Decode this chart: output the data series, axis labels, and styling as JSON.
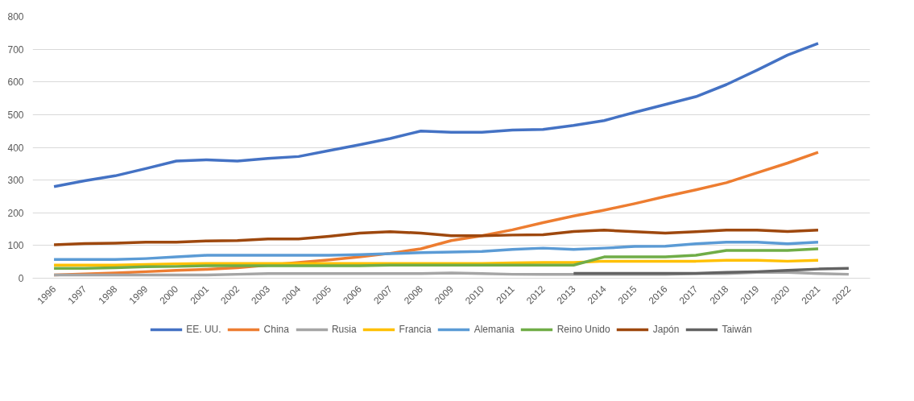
{
  "chart_data": {
    "type": "line",
    "categories": [
      "1996",
      "1997",
      "1998",
      "1999",
      "2000",
      "2001",
      "2002",
      "2003",
      "2004",
      "2005",
      "2006",
      "2007",
      "2008",
      "2009",
      "2010",
      "2011",
      "2012",
      "2013",
      "2014",
      "2015",
      "2016",
      "2017",
      "2018",
      "2019",
      "2020",
      "2021",
      "2022"
    ],
    "ylim": [
      0,
      800
    ],
    "yticks": [
      0,
      100,
      200,
      300,
      400,
      500,
      600,
      700,
      800
    ],
    "grid": "y",
    "legend": "bottom",
    "marker": "none",
    "line_style": "solid",
    "series": [
      {
        "name": "EE. UU.",
        "color": "#4472c4",
        "values": [
          280,
          298,
          313,
          335,
          358,
          362,
          358,
          366,
          372,
          390,
          408,
          427,
          450,
          446,
          446,
          453,
          455,
          467,
          482,
          507,
          531,
          555,
          592,
          636,
          682,
          718,
          null
        ]
      },
      {
        "name": "China",
        "color": "#ed7d31",
        "values": [
          10,
          13,
          16,
          20,
          24,
          27,
          32,
          40,
          48,
          56,
          65,
          76,
          90,
          115,
          130,
          148,
          170,
          190,
          208,
          228,
          250,
          270,
          292,
          322,
          352,
          385,
          null
        ]
      },
      {
        "name": "Rusia",
        "color": "#a5a5a5",
        "values": [
          10,
          10,
          10,
          10,
          10,
          10,
          12,
          14,
          14,
          14,
          14,
          14,
          14,
          16,
          14,
          12,
          12,
          12,
          12,
          12,
          12,
          14,
          14,
          18,
          18,
          14,
          12
        ]
      },
      {
        "name": "Francia",
        "color": "#ffc000",
        "values": [
          40,
          40,
          40,
          42,
          44,
          45,
          45,
          45,
          45,
          45,
          45,
          45,
          45,
          45,
          45,
          47,
          48,
          48,
          52,
          52,
          52,
          52,
          55,
          55,
          52,
          55,
          null
        ]
      },
      {
        "name": "Alemania",
        "color": "#5b9bd5",
        "values": [
          57,
          57,
          57,
          60,
          65,
          70,
          70,
          70,
          70,
          70,
          72,
          75,
          78,
          80,
          82,
          88,
          92,
          88,
          92,
          97,
          98,
          105,
          110,
          110,
          105,
          110,
          null
        ]
      },
      {
        "name": "Reino Unido",
        "color": "#70ad47",
        "values": [
          30,
          30,
          32,
          35,
          36,
          38,
          38,
          38,
          38,
          38,
          38,
          40,
          40,
          40,
          40,
          40,
          40,
          40,
          65,
          65,
          65,
          70,
          85,
          85,
          85,
          90,
          null
        ]
      },
      {
        "name": "Japón",
        "color": "#9e480e",
        "values": [
          102,
          106,
          107,
          110,
          110,
          114,
          115,
          120,
          120,
          128,
          138,
          142,
          138,
          130,
          130,
          132,
          133,
          143,
          147,
          142,
          138,
          142,
          147,
          147,
          143,
          147,
          null
        ]
      },
      {
        "name": "Taiwán",
        "color": "#636363",
        "values": [
          null,
          null,
          null,
          null,
          null,
          null,
          null,
          null,
          null,
          null,
          null,
          null,
          null,
          null,
          null,
          null,
          null,
          15,
          15,
          15,
          15,
          15,
          18,
          20,
          24,
          28,
          30
        ]
      }
    ]
  }
}
